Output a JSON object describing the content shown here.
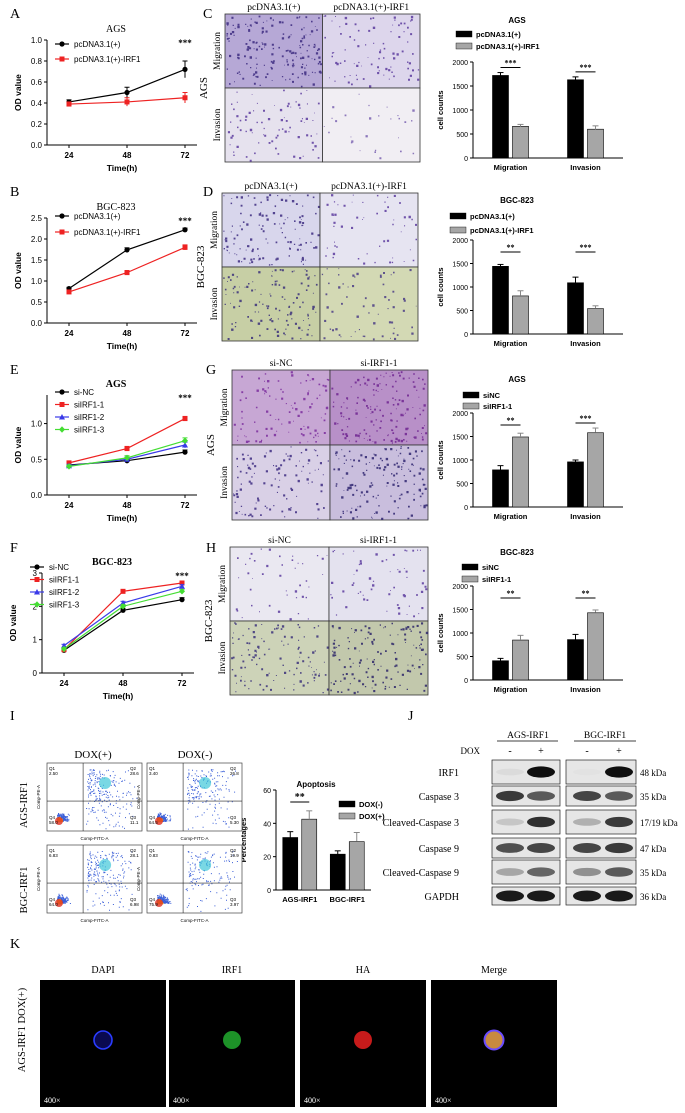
{
  "panel_letters": [
    "A",
    "B",
    "C",
    "D",
    "E",
    "F",
    "G",
    "H",
    "I",
    "J",
    "K"
  ],
  "colors": {
    "black": "#000000",
    "red": "#ee2222",
    "blue": "#3a3ae8",
    "green": "#44dd33",
    "gray": "#a6a6a6",
    "stain": "#6b3fa8",
    "stain_bg_light": "#e8e4ee"
  },
  "panels": {
    "C": {
      "col_labels": [
        "pcDNA3.1(+)",
        "pcDNA3.1(+)-IRF1"
      ],
      "cell_line": "AGS",
      "row_labels": [
        "Migration",
        "Invasion"
      ]
    },
    "D": {
      "col_labels": [
        "pcDNA3.1(+)",
        "pcDNA3.1(+)-IRF1"
      ],
      "cell_line": "BGC-823",
      "row_labels": [
        "Migration",
        "Invasion"
      ]
    },
    "G": {
      "col_labels": [
        "si-NC",
        "si-IRF1-1"
      ],
      "cell_line": "AGS",
      "row_labels": [
        "Migration",
        "Invasion"
      ]
    },
    "H": {
      "col_labels": [
        "si-NC",
        "si-IRF1-1"
      ],
      "cell_line": "BGC-823",
      "row_labels": [
        "Migration",
        "Invasion"
      ]
    },
    "I": {
      "col_labels": [
        "DOX(+)",
        "DOX(-)"
      ],
      "row_labels": [
        "AGS-IRF1",
        "BGC-IRF1"
      ],
      "axis_x": "Comp-FITC-A",
      "axis_y": "Comp-PE-A",
      "quadrants": [
        {
          "Q1": "2.50",
          "Q2": "28.6",
          "Q3": "11.1",
          "Q4": "58.0"
        },
        {
          "Q1": "3.40",
          "Q2": "26.8",
          "Q3": "5.30",
          "Q4": "64.5"
        },
        {
          "Q1": "6.83",
          "Q2": "28.1",
          "Q3": "6.98",
          "Q4": "64.0"
        },
        {
          "Q1": "0.83",
          "Q2": "19.9",
          "Q3": "3.97",
          "Q4": "75.9"
        }
      ]
    },
    "J": {
      "group_labels": [
        "AGS-IRF1",
        "BGC-IRF1"
      ],
      "dox_label": "DOX",
      "lane_signs": [
        "-",
        "+",
        "-",
        "+"
      ],
      "rows": [
        {
          "name": "IRF1",
          "kda": "48 kDa"
        },
        {
          "name": "Caspase 3",
          "kda": "35 kDa"
        },
        {
          "name": "Cleaved-Caspase 3",
          "kda": "17/19 kDa"
        },
        {
          "name": "Caspase 9",
          "kda": "47 kDa"
        },
        {
          "name": "Cleaved-Caspase 9",
          "kda": "35 kDa"
        },
        {
          "name": "GAPDH",
          "kda": "36 kDa"
        }
      ]
    },
    "K": {
      "row_label": "AGS-IRF1 DOX(+)",
      "channels": [
        "DAPI",
        "IRF1",
        "HA",
        "Merge"
      ],
      "magnification": "400×"
    }
  },
  "chart_data": [
    {
      "panel": "A",
      "type": "line",
      "title": "AGS",
      "xlabel": "Time(h)",
      "ylabel": "OD value",
      "x": [
        24,
        48,
        72
      ],
      "ylim": [
        0.0,
        1.0
      ],
      "yticks": [
        0.0,
        0.2,
        0.4,
        0.6,
        0.8,
        1.0
      ],
      "series": [
        {
          "name": "pcDNA3.1(+)",
          "color": "#000000",
          "marker": "circle",
          "values": [
            0.41,
            0.5,
            0.72
          ],
          "errors": [
            0.02,
            0.05,
            0.08
          ]
        },
        {
          "name": "pcDNA3.1(+)-IRF1",
          "color": "#ee2222",
          "marker": "square",
          "values": [
            0.39,
            0.41,
            0.45
          ],
          "errors": [
            0.02,
            0.04,
            0.05
          ]
        }
      ],
      "annotations": [
        {
          "x": 72,
          "text": "***"
        }
      ]
    },
    {
      "panel": "B",
      "type": "line",
      "title": "BGC-823",
      "xlabel": "Time(h)",
      "ylabel": "OD value",
      "x": [
        24,
        48,
        72
      ],
      "ylim": [
        0.0,
        2.5
      ],
      "yticks": [
        0.0,
        0.5,
        1.0,
        1.5,
        2.0,
        2.5
      ],
      "series": [
        {
          "name": "pcDNA3.1(+)",
          "color": "#000000",
          "marker": "circle",
          "values": [
            0.82,
            1.74,
            2.22
          ],
          "errors": [
            0.03,
            0.05,
            0.04
          ]
        },
        {
          "name": "pcDNA3.1(+)-IRF1",
          "color": "#ee2222",
          "marker": "square",
          "values": [
            0.74,
            1.2,
            1.8
          ],
          "errors": [
            0.03,
            0.05,
            0.06
          ]
        }
      ],
      "annotations": [
        {
          "x": 72,
          "text": "***"
        }
      ]
    },
    {
      "panel": "E",
      "type": "line",
      "title": "AGS",
      "xlabel": "Time(h)",
      "ylabel": "OD value",
      "x": [
        24,
        48,
        72
      ],
      "ylim": [
        0.0,
        1.4
      ],
      "yticks": [
        0.0,
        0.5,
        1.0
      ],
      "series": [
        {
          "name": "si-NC",
          "color": "#000000",
          "marker": "circle",
          "values": [
            0.42,
            0.48,
            0.6
          ],
          "errors": [
            0.02,
            0.02,
            0.03
          ]
        },
        {
          "name": "siIRF1-1",
          "color": "#ee2222",
          "marker": "square",
          "values": [
            0.45,
            0.65,
            1.07
          ],
          "errors": [
            0.02,
            0.03,
            0.03
          ]
        },
        {
          "name": "siIRF1-2",
          "color": "#3a3ae8",
          "marker": "triangle",
          "values": [
            0.41,
            0.5,
            0.7
          ],
          "errors": [
            0.02,
            0.03,
            0.04
          ]
        },
        {
          "name": "siIRF1-3",
          "color": "#44dd33",
          "marker": "diamond",
          "values": [
            0.4,
            0.52,
            0.76
          ],
          "errors": [
            0.02,
            0.03,
            0.04
          ]
        }
      ],
      "annotations": [
        {
          "x": 72,
          "text": "***"
        }
      ]
    },
    {
      "panel": "F",
      "type": "line",
      "title": "BGC-823",
      "xlabel": "Time(h)",
      "ylabel": "OD value",
      "x": [
        24,
        48,
        72
      ],
      "ylim": [
        0,
        3
      ],
      "yticks": [
        0,
        1,
        2,
        3
      ],
      "series": [
        {
          "name": "si-NC",
          "color": "#000000",
          "marker": "circle",
          "values": [
            0.68,
            1.88,
            2.2
          ],
          "errors": [
            0.04,
            0.06,
            0.06
          ]
        },
        {
          "name": "siIRF1-1",
          "color": "#ee2222",
          "marker": "square",
          "values": [
            0.7,
            2.45,
            2.7
          ],
          "errors": [
            0.04,
            0.04,
            0.05
          ]
        },
        {
          "name": "siIRF1-2",
          "color": "#3a3ae8",
          "marker": "triangle",
          "values": [
            0.82,
            2.1,
            2.6
          ],
          "errors": [
            0.04,
            0.05,
            0.05
          ]
        },
        {
          "name": "siIRF1-3",
          "color": "#44dd33",
          "marker": "diamond",
          "values": [
            0.72,
            2.0,
            2.45
          ],
          "errors": [
            0.04,
            0.05,
            0.05
          ]
        }
      ],
      "annotations": [
        {
          "x": 72,
          "text": "***"
        }
      ]
    },
    {
      "panel": "C",
      "type": "bar",
      "title": "AGS",
      "ylabel": "cell counts",
      "categories": [
        "Migration",
        "Invasion"
      ],
      "ylim": [
        0,
        2000
      ],
      "yticks": [
        0,
        500,
        1000,
        1500,
        2000
      ],
      "series": [
        {
          "name": "pcDNA3.1(+)",
          "color": "#000000",
          "values": [
            1720,
            1630
          ],
          "errors": [
            60,
            60
          ]
        },
        {
          "name": "pcDNA3.1(+)-IRF1",
          "color": "#a6a6a6",
          "values": [
            660,
            600
          ],
          "errors": [
            40,
            70
          ]
        }
      ],
      "annotations": [
        {
          "category": "Migration",
          "text": "***"
        },
        {
          "category": "Invasion",
          "text": "***"
        }
      ]
    },
    {
      "panel": "D",
      "type": "bar",
      "title": "BGC-823",
      "ylabel": "cell counts",
      "categories": [
        "Migration",
        "Invasion"
      ],
      "ylim": [
        0,
        2000
      ],
      "yticks": [
        0,
        500,
        1000,
        1500,
        2000
      ],
      "series": [
        {
          "name": "pcDNA3.1(+)",
          "color": "#000000",
          "values": [
            1440,
            1090
          ],
          "errors": [
            40,
            120
          ]
        },
        {
          "name": "pcDNA3.1(+)-IRF1",
          "color": "#a6a6a6",
          "values": [
            810,
            540
          ],
          "errors": [
            110,
            60
          ]
        }
      ],
      "annotations": [
        {
          "category": "Migration",
          "text": "**"
        },
        {
          "category": "Invasion",
          "text": "***"
        }
      ]
    },
    {
      "panel": "G",
      "type": "bar",
      "title": "AGS",
      "ylabel": "cell counts",
      "categories": [
        "Migration",
        "Invasion"
      ],
      "ylim": [
        0,
        2000
      ],
      "yticks": [
        0,
        500,
        1000,
        1500,
        2000
      ],
      "series": [
        {
          "name": "siNC",
          "color": "#000000",
          "values": [
            790,
            960
          ],
          "errors": [
            90,
            40
          ]
        },
        {
          "name": "siIRF1-1",
          "color": "#a6a6a6",
          "values": [
            1490,
            1580
          ],
          "errors": [
            80,
            100
          ]
        }
      ],
      "annotations": [
        {
          "category": "Migration",
          "text": "**"
        },
        {
          "category": "Invasion",
          "text": "***"
        }
      ]
    },
    {
      "panel": "H",
      "type": "bar",
      "title": "BGC-823",
      "ylabel": "cell counts",
      "categories": [
        "Migration",
        "Invasion"
      ],
      "ylim": [
        0,
        2000
      ],
      "yticks": [
        0,
        500,
        1000,
        1500,
        2000
      ],
      "series": [
        {
          "name": "siNC",
          "color": "#000000",
          "values": [
            410,
            860
          ],
          "errors": [
            50,
            110
          ]
        },
        {
          "name": "siIRF1-1",
          "color": "#a6a6a6",
          "values": [
            850,
            1430
          ],
          "errors": [
            100,
            60
          ]
        }
      ],
      "annotations": [
        {
          "category": "Migration",
          "text": "**"
        },
        {
          "category": "Invasion",
          "text": "**"
        }
      ]
    },
    {
      "panel": "I",
      "type": "bar",
      "title": "Apoptosis",
      "ylabel": "Percentages",
      "categories": [
        "AGS-IRF1",
        "BGC-IRF1"
      ],
      "ylim": [
        0,
        60
      ],
      "yticks": [
        0,
        20,
        40,
        60
      ],
      "series": [
        {
          "name": "DOX(-)",
          "color": "#000000",
          "values": [
            31.5,
            21.5
          ],
          "errors": [
            3.5,
            2.0
          ]
        },
        {
          "name": "DOX(+)",
          "color": "#a6a6a6",
          "values": [
            42.5,
            29.0
          ],
          "errors": [
            5.0,
            5.5
          ]
        }
      ],
      "annotations": [
        {
          "category": "AGS-IRF1",
          "text": "**"
        }
      ]
    }
  ]
}
